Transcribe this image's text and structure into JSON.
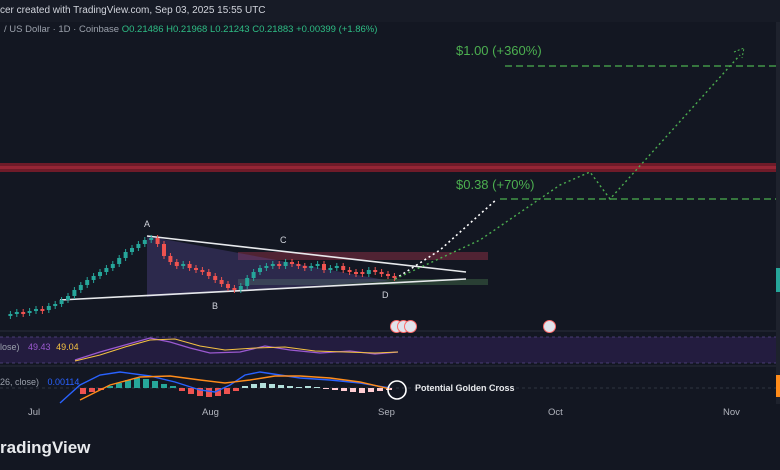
{
  "header": {
    "created_text": "cer created with TradingView.com, Sep 03, 2025 15:55 UTC"
  },
  "legend": {
    "symbol": "/ US Dollar · 1D · Coinbase",
    "open": "O0.21486",
    "high": "H0.21968",
    "low": "L0.21243",
    "close": "C0.21883",
    "change": "+0.00399 (+1.86%)"
  },
  "annotations": {
    "target_high": "$1.00 (+360%)",
    "target_mid": "$0.38 (+70%)",
    "points": [
      "A",
      "B",
      "C",
      "D"
    ],
    "golden_cross": "Potential Golden Cross"
  },
  "indicators": {
    "rsi_label": "lose)",
    "rsi_value_1": "49.43",
    "rsi_value_2": "49.04",
    "macd_label": "26, close)",
    "macd_value": "0.00114"
  },
  "x_axis": {
    "ticks": [
      "Jul",
      "Aug",
      "Sep",
      "Oct",
      "Nov"
    ]
  },
  "branding": {
    "logo_text": "radingView"
  },
  "colors": {
    "background": "#131722",
    "target_line": "#4caf50",
    "resistance_band": "#8b1e2d",
    "triangle": "#ffffff",
    "bull_candle": "#26a69a",
    "bear_candle": "#ef5350"
  }
}
